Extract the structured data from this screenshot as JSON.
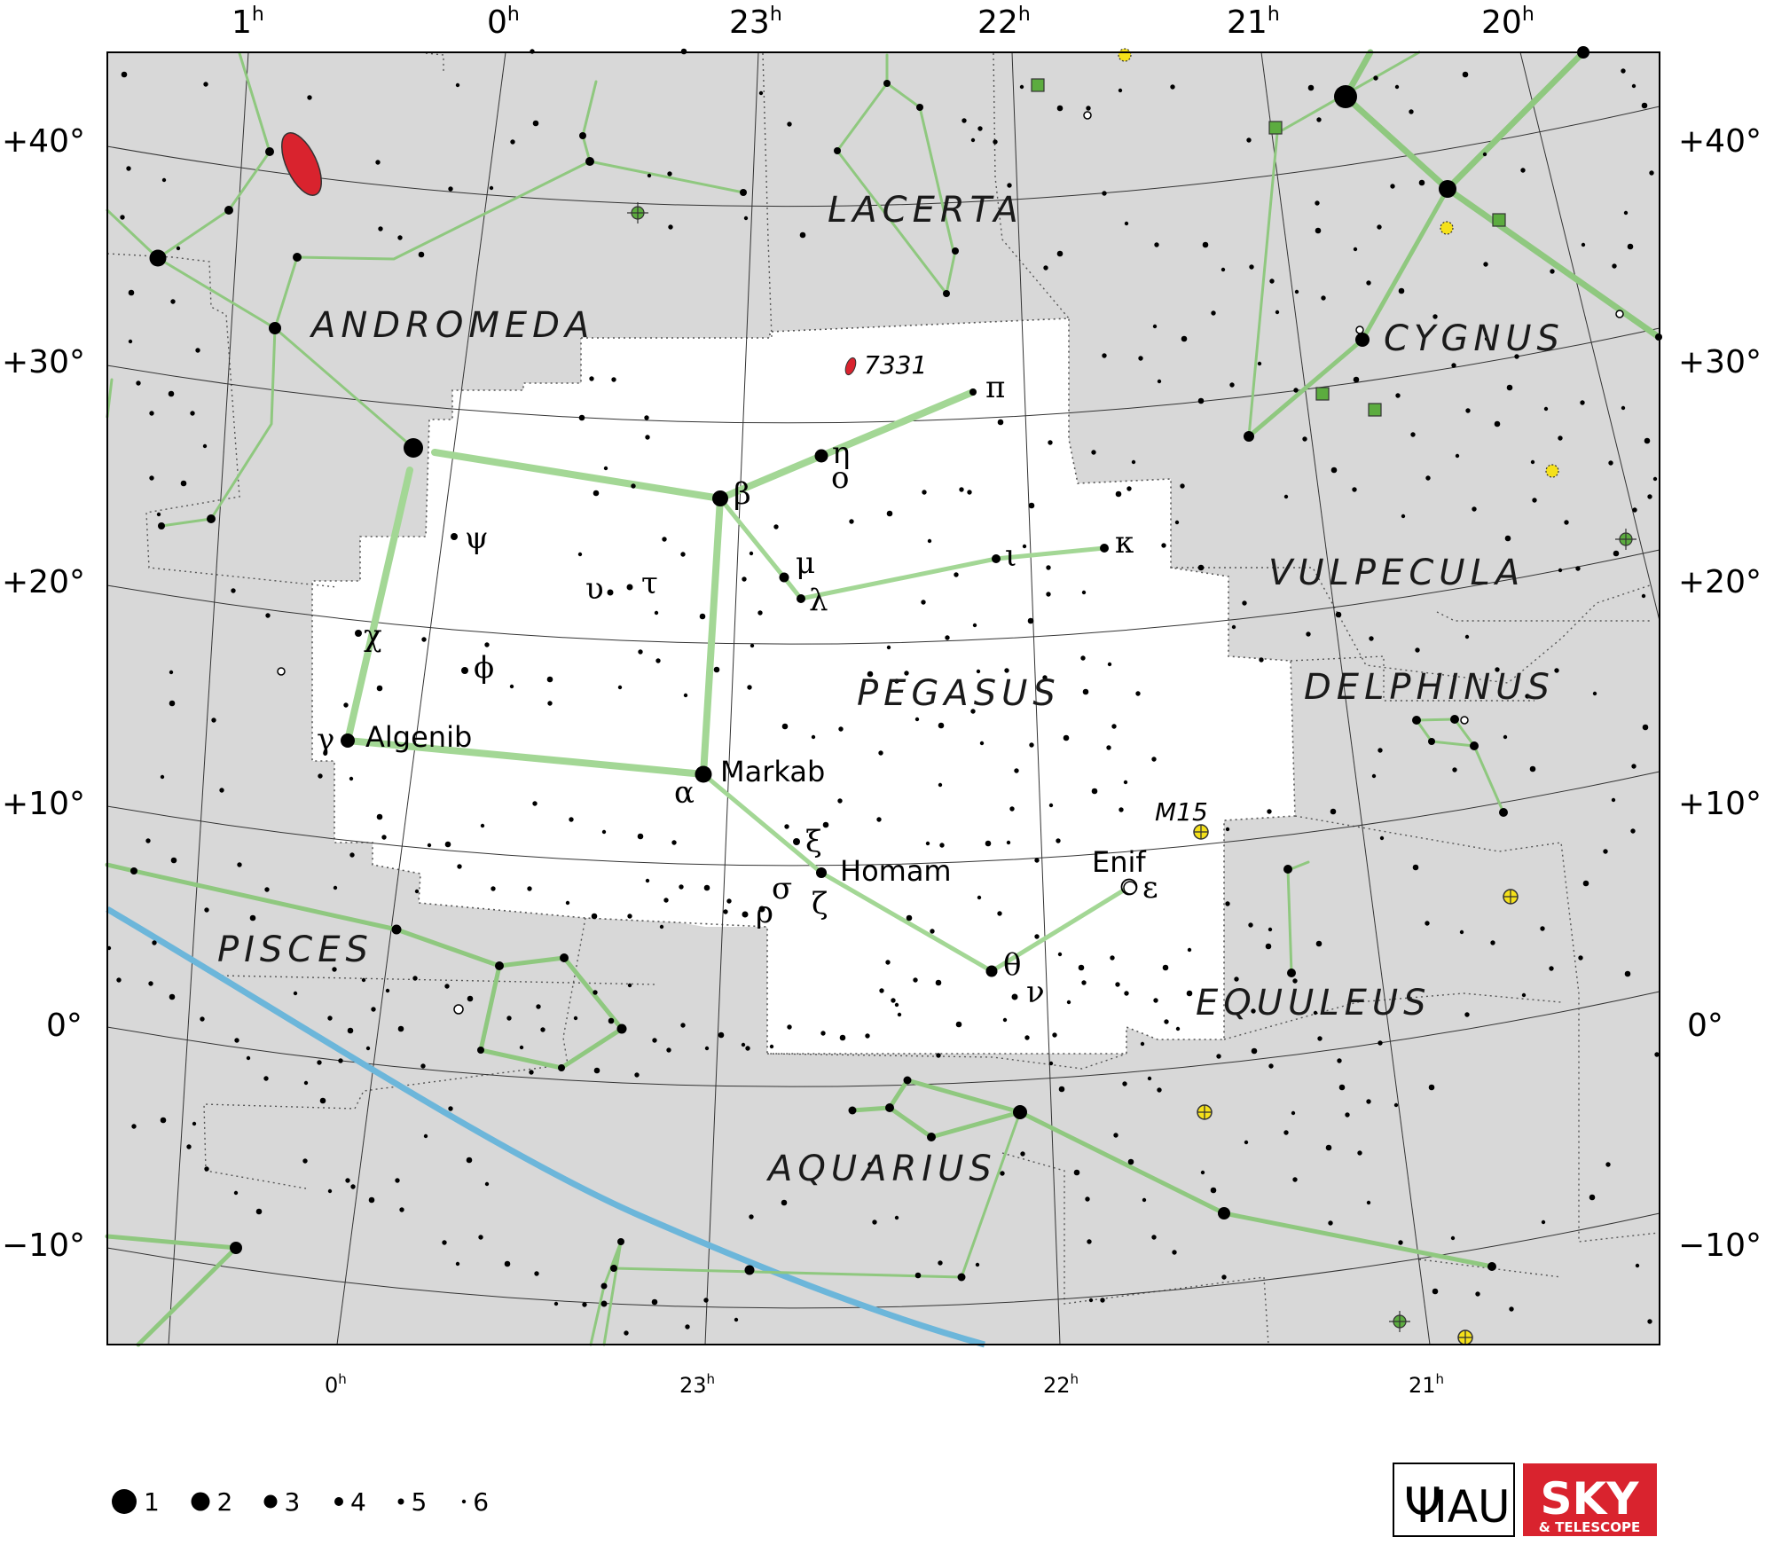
{
  "constellation": "PEGASUS",
  "ra_labels_top": [
    {
      "h": "1",
      "s": "h"
    },
    {
      "h": "0",
      "s": "h"
    },
    {
      "h": "23",
      "s": "h"
    },
    {
      "h": "22",
      "s": "h"
    },
    {
      "h": "21",
      "s": "h"
    },
    {
      "h": "20",
      "s": "h"
    }
  ],
  "ra_labels_bottom": [
    {
      "h": "0",
      "s": "h"
    },
    {
      "h": "23",
      "s": "h"
    },
    {
      "h": "22",
      "s": "h"
    },
    {
      "h": "21",
      "s": "h"
    }
  ],
  "dec_labels": [
    "+40°",
    "+30°",
    "+20°",
    "+10°",
    "0°",
    "−10°"
  ],
  "constellation_names": [
    "LACERTA",
    "ANDROMEDA",
    "CYGNUS",
    "VULPECULA",
    "PEGASUS",
    "DELPHINUS",
    "PISCES",
    "EQUULEUS",
    "AQUARIUS"
  ],
  "greek_letters": {
    "pi": "π",
    "eta": "η",
    "omicron": "ο",
    "beta": "β",
    "mu": "μ",
    "lambda": "λ",
    "iota": "ι",
    "kappa": "κ",
    "psi": "ψ",
    "upsilon": "υ",
    "tau": "τ",
    "chi": "χ",
    "phi": "ϕ",
    "gamma": "γ",
    "alpha": "α",
    "xi": "ξ",
    "sigma": "σ",
    "rho": "ρ",
    "zeta": "ζ",
    "theta": "θ",
    "nu": "ν",
    "epsilon": "ε"
  },
  "star_names": {
    "algenib": "Algenib",
    "markab": "Markab",
    "homam": "Homam",
    "enif": "Enif"
  },
  "deep_sky": {
    "ngc": "7331",
    "m15": "M15"
  },
  "magnitude_legend": [
    "1",
    "2",
    "3",
    "4",
    "5",
    "6"
  ],
  "logos": {
    "iau": "IAU",
    "sky": "SKY",
    "sky_sub": "& TELESCOPE"
  },
  "colors": {
    "outside": "#d8d8d8",
    "inside": "#ffffff",
    "figure_line": "#a3d795",
    "figure_line_other": "#8fc87f",
    "ecliptic": "#6cb6da",
    "galaxy": "#d9232e",
    "cluster": "#f5e11a",
    "nebula": "#5cac3f"
  }
}
